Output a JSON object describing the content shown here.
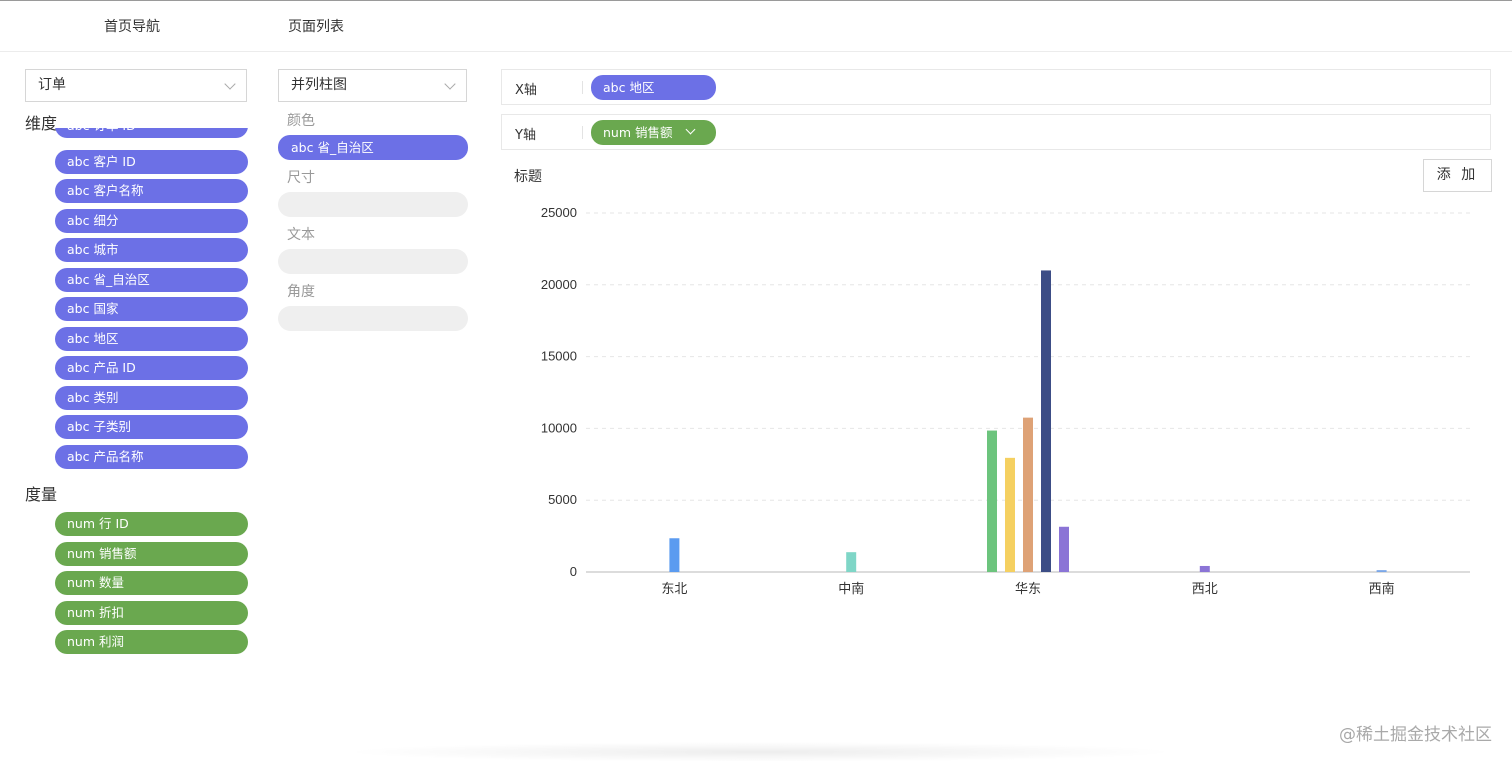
{
  "nav": {
    "home_label": "首页导航",
    "pages_label": "页面列表"
  },
  "data_panel": {
    "table_select": "订单",
    "dimensions_title": "维度",
    "dimensions": [
      "abc 订单 ID",
      "abc 客户 ID",
      "abc 客户名称",
      "abc 细分",
      "abc 城市",
      "abc 省_自治区",
      "abc 国家",
      "abc 地区",
      "abc 产品 ID",
      "abc 类别",
      "abc 子类别",
      "abc 产品名称"
    ],
    "measures_title": "度量",
    "measures": [
      "num 行 ID",
      "num 销售额",
      "num 数量",
      "num 折扣",
      "num 利润"
    ]
  },
  "encoding_panel": {
    "chart_type_select": "并列柱图",
    "color_label": "颜色",
    "color_value": "abc 省_自治区",
    "size_label": "尺寸",
    "text_label": "文本",
    "angle_label": "角度"
  },
  "axes": {
    "x_label": "X轴",
    "x_field": "abc 地区",
    "y_label": "Y轴",
    "y_field": "num 销售额"
  },
  "chart_header": {
    "title_label": "标题",
    "add_button": "添 加"
  },
  "chart_data": {
    "type": "bar",
    "categories": [
      "东北",
      "中南",
      "华东",
      "西北",
      "西南"
    ],
    "ylim": [
      0,
      25000
    ],
    "yticks": [
      0,
      5000,
      10000,
      15000,
      20000,
      25000
    ],
    "grid": true,
    "xlabel": "",
    "ylabel": "",
    "title": "",
    "groups": [
      {
        "category": "东北",
        "bars": [
          {
            "value": 2350,
            "color": "#5b9bf0"
          }
        ]
      },
      {
        "category": "中南",
        "bars": [
          {
            "value": 1380,
            "color": "#7fd6c7"
          }
        ]
      },
      {
        "category": "华东",
        "bars": [
          {
            "value": 9850,
            "color": "#6cc47d"
          },
          {
            "value": 7950,
            "color": "#f5d061"
          },
          {
            "value": 10750,
            "color": "#dea276"
          },
          {
            "value": 21000,
            "color": "#3c4d86"
          },
          {
            "value": 3150,
            "color": "#8b74d6"
          }
        ]
      },
      {
        "category": "西北",
        "bars": [
          {
            "value": 420,
            "color": "#8b74d6"
          }
        ]
      },
      {
        "category": "西南",
        "bars": [
          {
            "value": 130,
            "color": "#7aa7e8"
          }
        ]
      }
    ]
  },
  "watermark": "@稀土掘金技术社区"
}
